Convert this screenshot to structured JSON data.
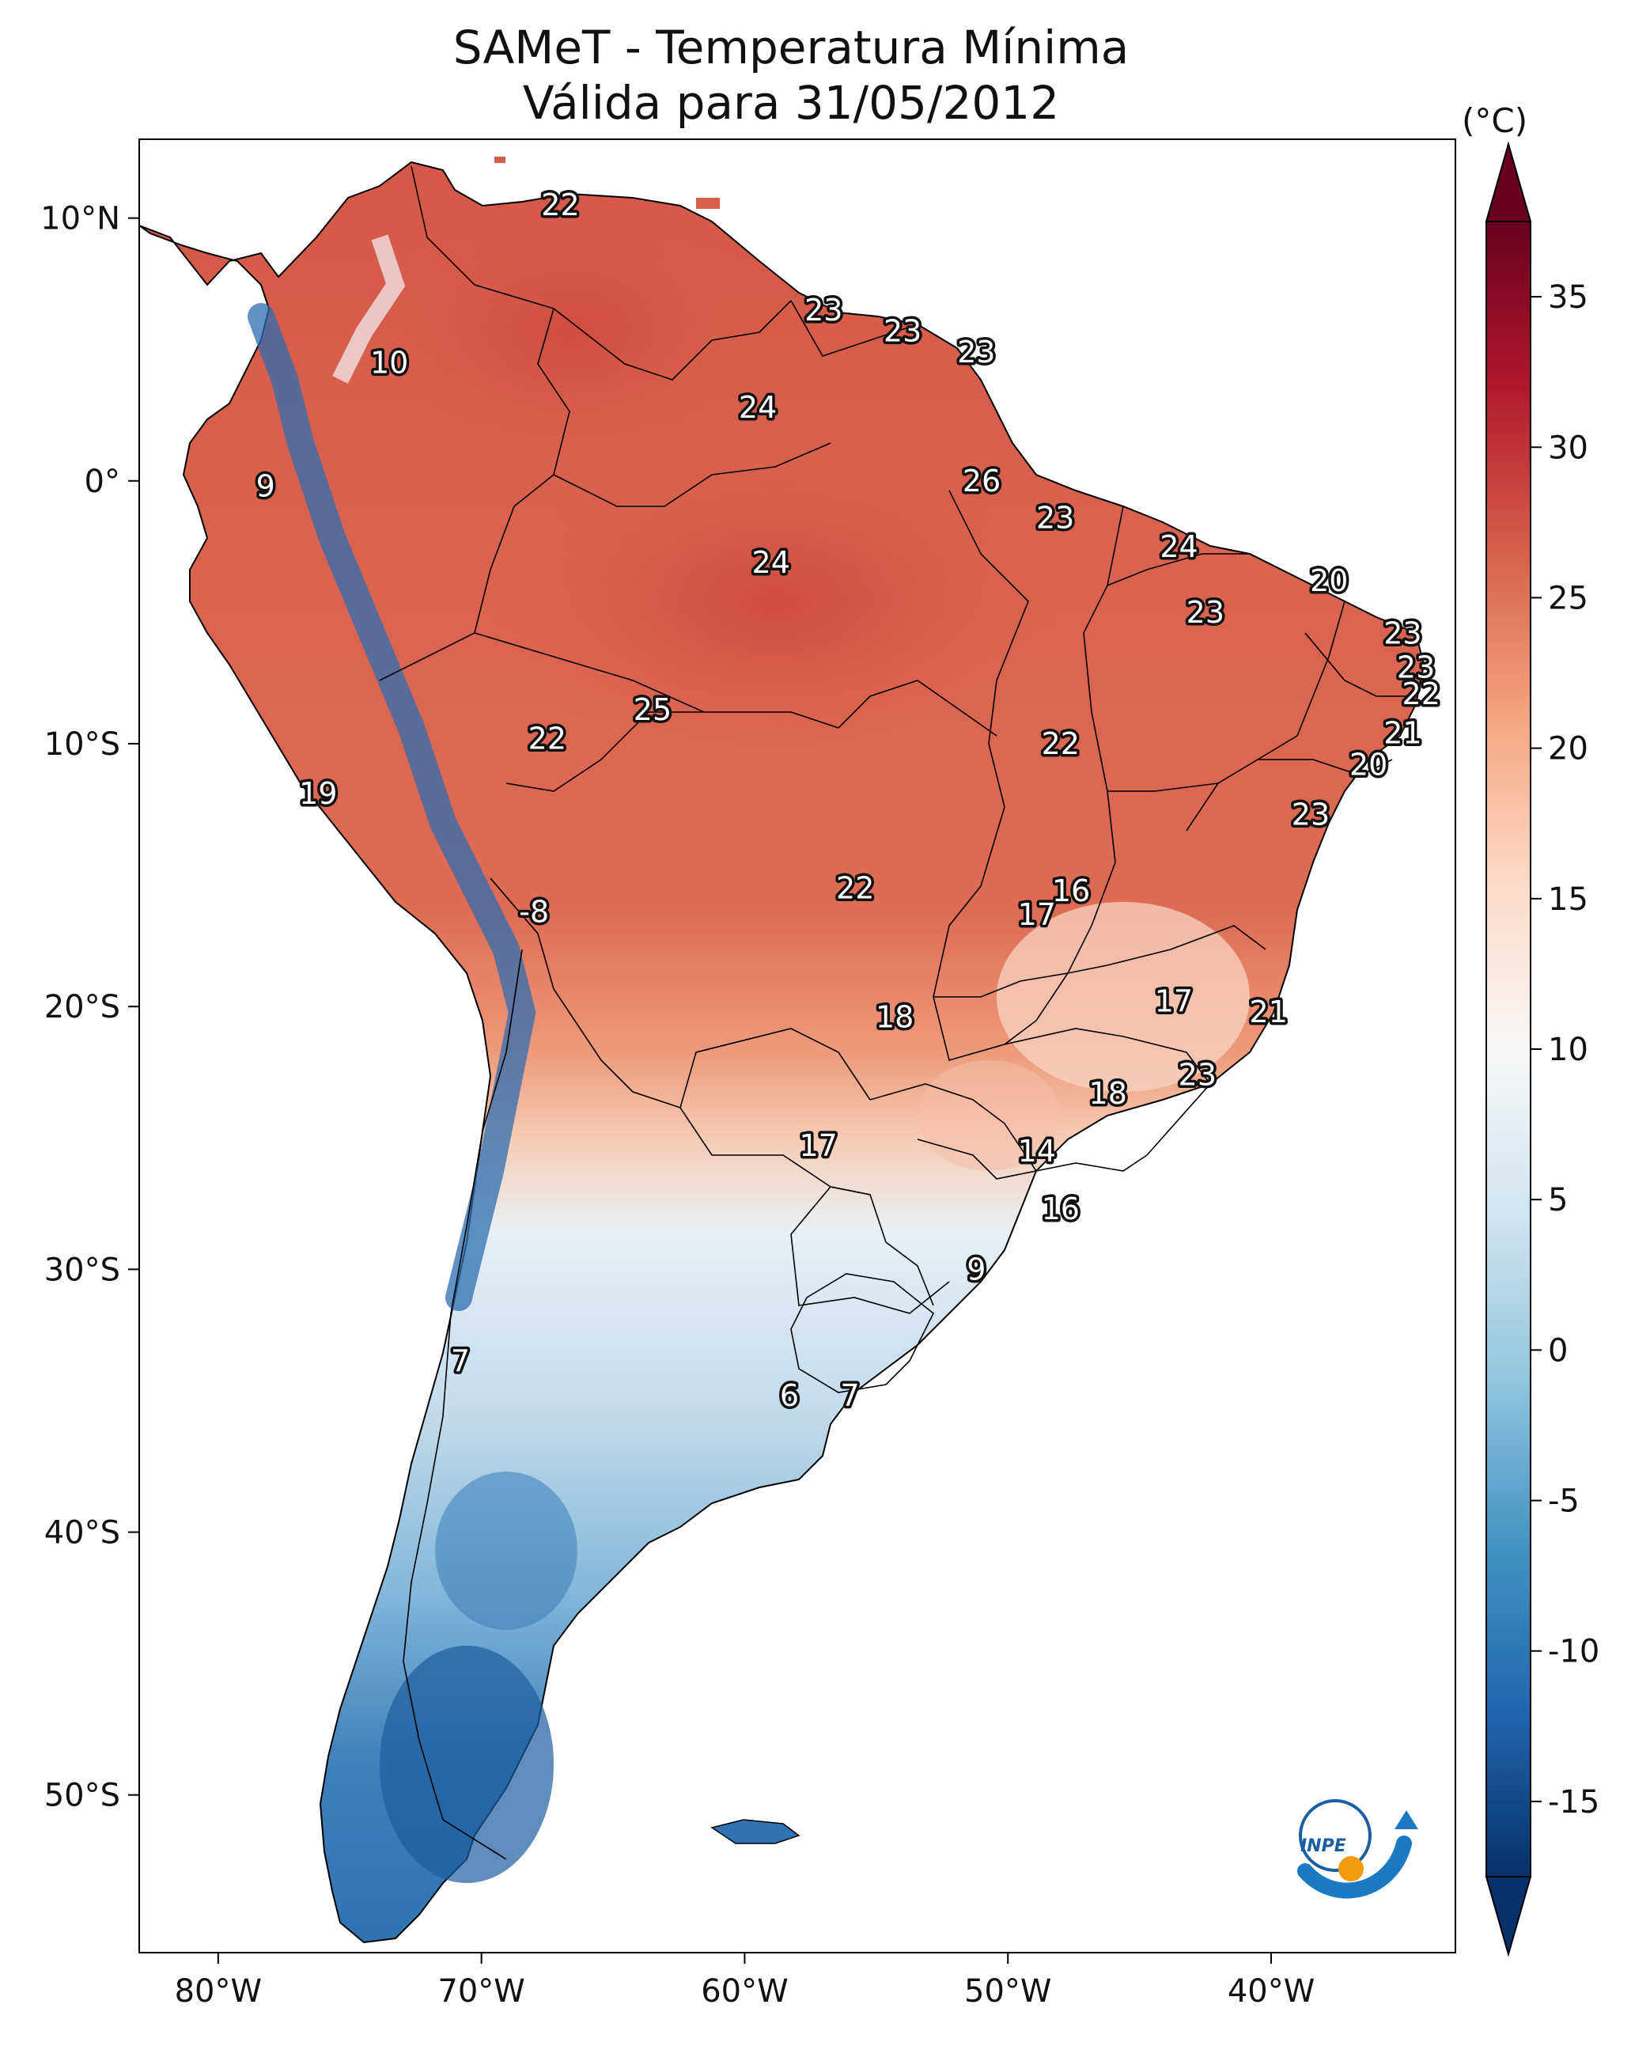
{
  "title": {
    "line1": "SAMeT - Temperatura Mínima",
    "line2": "Válida para 31/05/2012"
  },
  "map": {
    "region": "South America",
    "lon_range": [
      -83,
      -33
    ],
    "lat_range": [
      -56,
      13
    ],
    "lon_ticks": [
      "80°W",
      "70°W",
      "60°W",
      "50°W",
      "40°W"
    ],
    "lat_ticks": [
      "10°N",
      "0°",
      "10°S",
      "20°S",
      "30°S",
      "40°S",
      "50°S"
    ]
  },
  "colorbar": {
    "unit": "(°C)",
    "min": -15,
    "max": 35,
    "ticks": [
      "35",
      "30",
      "25",
      "20",
      "15",
      "10",
      "5",
      "0",
      "-5",
      "-10",
      "-15"
    ],
    "colormap": "RdBu_r",
    "colors": [
      "#08306b",
      "#2166ac",
      "#4393c3",
      "#92c5de",
      "#d1e5f0",
      "#f7f7f7",
      "#fddbc7",
      "#f4a582",
      "#d6604d",
      "#b2182b",
      "#67001f"
    ]
  },
  "values": [
    {
      "text": "22",
      "lon": -67.0,
      "lat": 10.5
    },
    {
      "text": "10",
      "lon": -73.5,
      "lat": 4.5
    },
    {
      "text": "23",
      "lon": -57.0,
      "lat": 6.5
    },
    {
      "text": "23",
      "lon": -54.0,
      "lat": 5.7
    },
    {
      "text": "23",
      "lon": -51.2,
      "lat": 4.9
    },
    {
      "text": "24",
      "lon": -59.5,
      "lat": 2.8
    },
    {
      "text": "9",
      "lon": -78.2,
      "lat": -0.2
    },
    {
      "text": "26",
      "lon": -51.0,
      "lat": 0.0
    },
    {
      "text": "23",
      "lon": -48.2,
      "lat": -1.4
    },
    {
      "text": "24",
      "lon": -59.0,
      "lat": -3.1
    },
    {
      "text": "24",
      "lon": -43.5,
      "lat": -2.5
    },
    {
      "text": "20",
      "lon": -37.8,
      "lat": -3.8
    },
    {
      "text": "23",
      "lon": -42.5,
      "lat": -5.0
    },
    {
      "text": "23",
      "lon": -35.0,
      "lat": -5.8
    },
    {
      "text": "23",
      "lon": -34.5,
      "lat": -7.1
    },
    {
      "text": "22",
      "lon": -34.3,
      "lat": -8.1
    },
    {
      "text": "25",
      "lon": -63.5,
      "lat": -8.7
    },
    {
      "text": "22",
      "lon": -67.5,
      "lat": -9.8
    },
    {
      "text": "22",
      "lon": -48.0,
      "lat": -10.0
    },
    {
      "text": "21",
      "lon": -35.0,
      "lat": -9.6
    },
    {
      "text": "20",
      "lon": -36.3,
      "lat": -10.8
    },
    {
      "text": "19",
      "lon": -76.2,
      "lat": -11.9
    },
    {
      "text": "23",
      "lon": -38.5,
      "lat": -12.7
    },
    {
      "text": "22",
      "lon": -55.8,
      "lat": -15.5
    },
    {
      "text": "16",
      "lon": -47.6,
      "lat": -15.6
    },
    {
      "text": "-8",
      "lon": -68.0,
      "lat": -16.4
    },
    {
      "text": "17",
      "lon": -48.9,
      "lat": -16.5
    },
    {
      "text": "17",
      "lon": -43.7,
      "lat": -19.8
    },
    {
      "text": "18",
      "lon": -54.3,
      "lat": -20.4
    },
    {
      "text": "21",
      "lon": -40.1,
      "lat": -20.2
    },
    {
      "text": "23",
      "lon": -42.8,
      "lat": -22.6
    },
    {
      "text": "18",
      "lon": -46.2,
      "lat": -23.3
    },
    {
      "text": "17",
      "lon": -57.2,
      "lat": -25.3
    },
    {
      "text": "14",
      "lon": -48.9,
      "lat": -25.5
    },
    {
      "text": "16",
      "lon": -48.0,
      "lat": -27.7
    },
    {
      "text": "9",
      "lon": -51.2,
      "lat": -30.0
    },
    {
      "text": "7",
      "lon": -70.8,
      "lat": -33.5
    },
    {
      "text": "6",
      "lon": -58.3,
      "lat": -34.8
    },
    {
      "text": "7",
      "lon": -56.0,
      "lat": -34.8
    }
  ],
  "logo": {
    "text": "INPE"
  }
}
